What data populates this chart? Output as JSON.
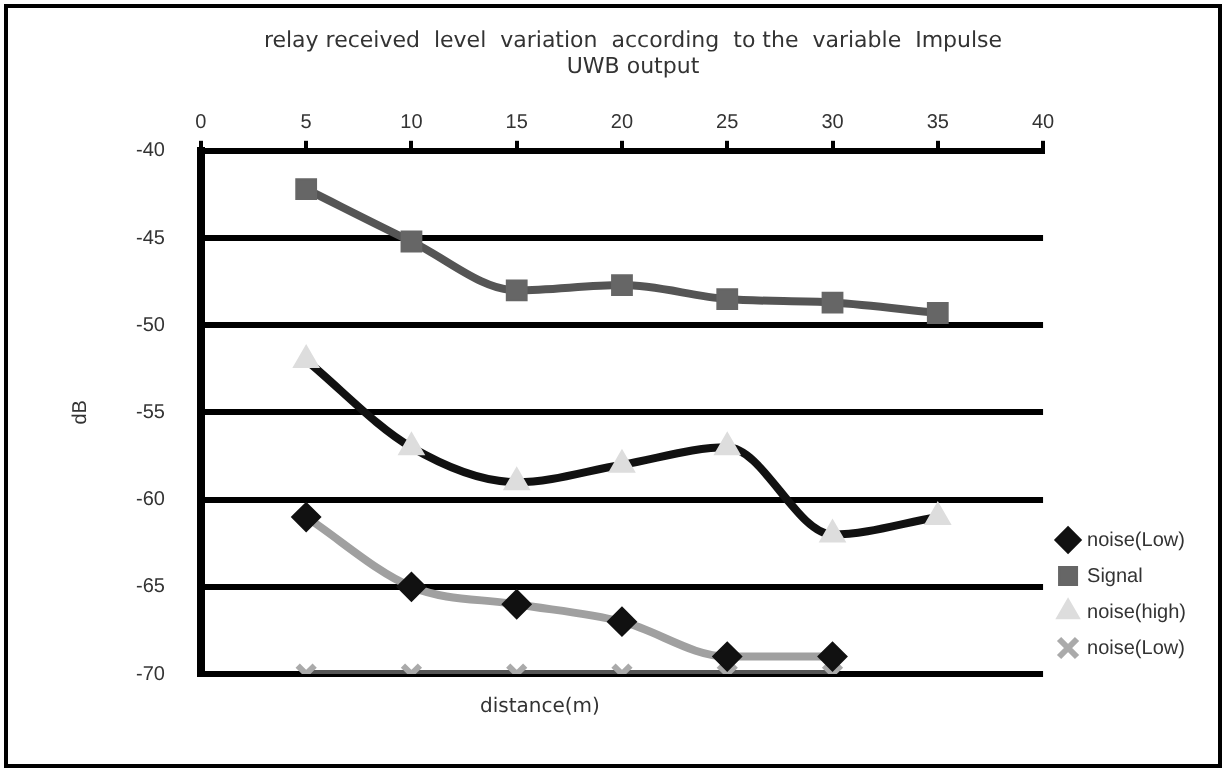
{
  "chart_data": {
    "type": "line",
    "title": [
      "relay received  level  variation  according  to the  variable  Impulse",
      "UWB output"
    ],
    "xlabel": "distance(m)",
    "ylabel": "dB",
    "x": [
      5,
      10,
      15,
      20,
      25,
      30,
      35
    ],
    "xlim": [
      0,
      40
    ],
    "xticks": [
      0,
      5,
      10,
      15,
      20,
      25,
      30,
      35,
      40
    ],
    "ylim": [
      -70,
      -40
    ],
    "yticks": [
      -70,
      -65,
      -60,
      -55,
      -50,
      -45,
      -40
    ],
    "grid": "y",
    "legend": "bottom right",
    "series": [
      {
        "name": "noise(Low)",
        "color": "#a0a0a0",
        "colors": [
          "#111111",
          "#111111",
          "#111111",
          "#111111",
          "#111111",
          "#111111",
          "#111111"
        ],
        "marker": "diamond",
        "values": [
          -61,
          -65,
          -66,
          -67,
          -69,
          -69,
          null
        ]
      },
      {
        "name": "Signal",
        "color": "#555555",
        "colors": [
          "#666666",
          "#666666",
          "#666666",
          "#666666",
          "#666666",
          "#666666",
          "#666666"
        ],
        "marker": "square",
        "values": [
          -42.2,
          -45.2,
          -48,
          -47.7,
          -48.5,
          -48.7,
          -49.3
        ]
      },
      {
        "name": "noise(high)",
        "color": "#111111",
        "colors": [
          "#dddddd",
          "#dddddd",
          "#dddddd",
          "#dddddd",
          "#dddddd",
          "#dddddd",
          "#dddddd"
        ],
        "marker": "triangle",
        "values": [
          -52,
          -57,
          -59,
          -58,
          -57,
          -62,
          -61
        ]
      },
      {
        "name": "noise(Low)",
        "color": "#555555",
        "colors": [
          "#aaaaaa",
          "#aaaaaa",
          "#aaaaaa",
          "#aaaaaa",
          "#aaaaaa",
          "#aaaaaa",
          "#aaaaaa"
        ],
        "marker": "cross",
        "values": [
          -70,
          -70,
          -70,
          -70,
          -70,
          -70,
          null
        ]
      }
    ]
  }
}
